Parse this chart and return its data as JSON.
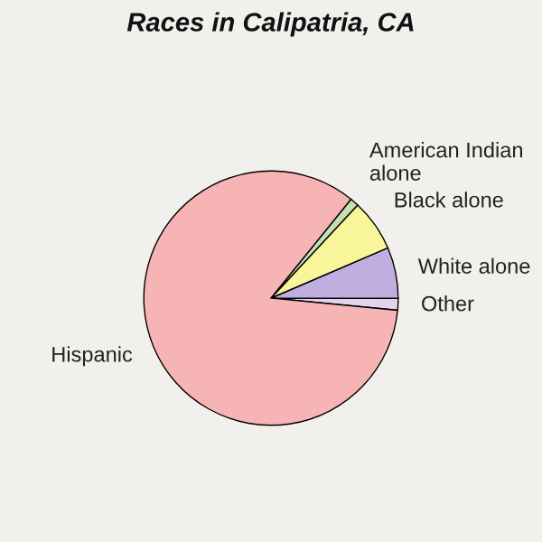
{
  "chart_data": {
    "type": "pie",
    "title": "Races in Calipatria, CA",
    "categories": [
      "Other",
      "White alone",
      "Black alone",
      "American Indian alone",
      "Hispanic"
    ],
    "values": [
      1.5,
      6.5,
      6.6,
      1.1,
      84.3
    ],
    "colors": [
      "#e6d2ee",
      "#c0aee0",
      "#f8f59a",
      "#c4dfb0",
      "#f7b4b4"
    ]
  }
}
